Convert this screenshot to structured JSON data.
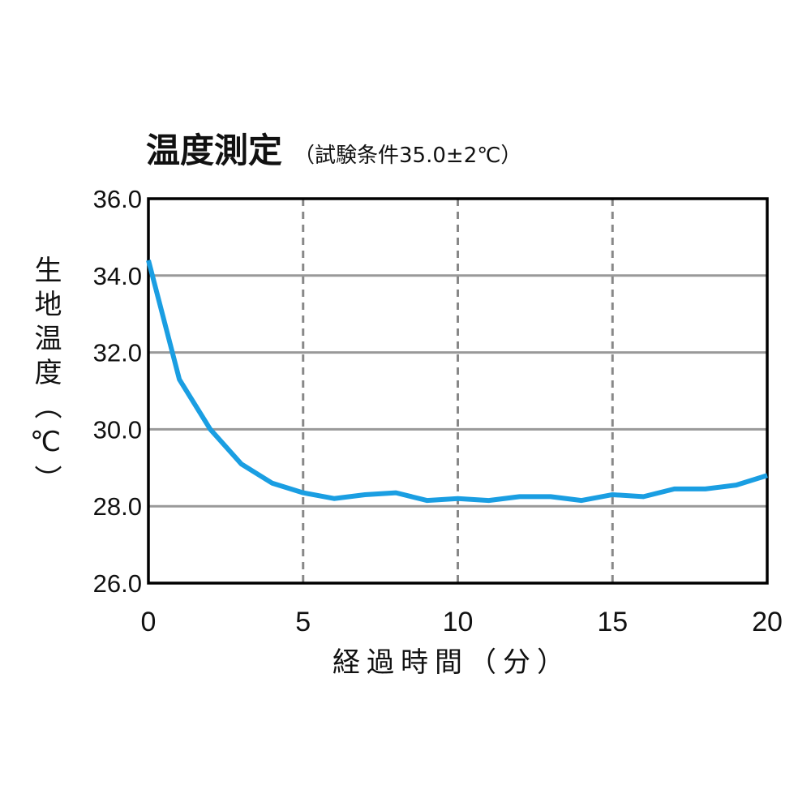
{
  "chart_data": {
    "type": "line",
    "title": "温度測定",
    "subtitle": "（試験条件35.0±2℃）",
    "xlabel": "経過時間（分）",
    "ylabel": "生地温度（℃）",
    "xlim": [
      0,
      20
    ],
    "ylim": [
      26.0,
      36.0
    ],
    "xticks": [
      "0",
      "5",
      "10",
      "15",
      "20"
    ],
    "yticks": [
      "26.0",
      "28.0",
      "30.0",
      "32.0",
      "34.0",
      "36.0"
    ],
    "grid": {
      "horizontal": "solid",
      "vertical": "dashed"
    },
    "line_color": "#1a9ee2",
    "x": [
      0,
      1,
      2,
      3,
      4,
      5,
      6,
      7,
      8,
      9,
      10,
      11,
      12,
      13,
      14,
      15,
      16,
      17,
      18,
      19,
      20
    ],
    "y": [
      34.4,
      31.3,
      30.0,
      29.1,
      28.6,
      28.35,
      28.2,
      28.3,
      28.35,
      28.15,
      28.2,
      28.15,
      28.25,
      28.25,
      28.15,
      28.3,
      28.25,
      28.45,
      28.45,
      28.55,
      28.8
    ]
  }
}
